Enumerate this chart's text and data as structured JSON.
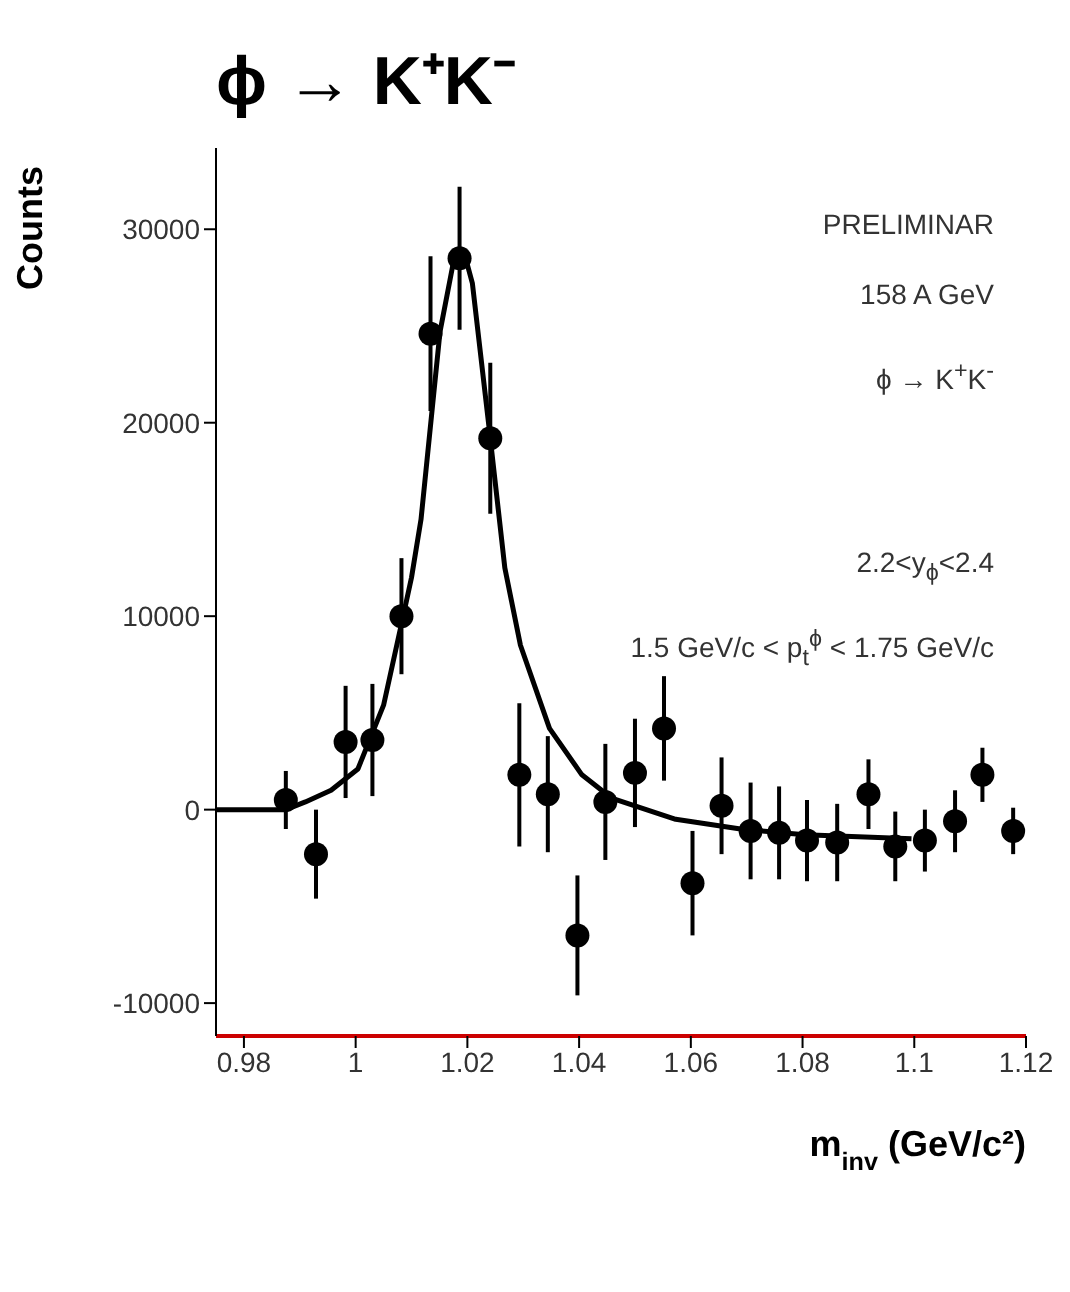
{
  "chart_data": {
    "type": "scatter",
    "title": "ϕ → K⁺K⁻",
    "xlabel": "m$_{inv}$  (GeV/c²)",
    "ylabel": "Counts",
    "annotations": [
      "PRELIMINAR",
      "158 A GeV",
      "ϕ → K$^{+}$K$^{-}$",
      "2.2<y$_{ϕ}$<2.4",
      "1.5 GeV/c < p$_{t}$$^{ϕ}$ < 1.75 GeV/c"
    ],
    "xlim": [
      0.975,
      1.12
    ],
    "xticks": [
      0.98,
      1,
      1.02,
      1.04,
      1.06,
      1.08,
      1.1,
      1.12
    ],
    "ylim": [
      -11700,
      34200
    ],
    "yticks": [
      -10000,
      0,
      10000,
      20000,
      30000
    ],
    "grid": false,
    "marker": "circle",
    "series": [
      {
        "color": "#000000",
        "x": [
          0.9875,
          0.9929,
          0.9982,
          1.003,
          1.0082,
          1.0134,
          1.0186,
          1.0241,
          1.0293,
          1.0344,
          1.0397,
          1.0447,
          1.05,
          1.0552,
          1.0603,
          1.0655,
          1.0707,
          1.0758,
          1.0808,
          1.0862,
          1.0918,
          1.0966,
          1.1019,
          1.1073,
          1.1122,
          1.1177
        ],
        "values": [
          500,
          -2300,
          3500,
          3600,
          10000,
          24600,
          28500,
          19200,
          1800,
          800,
          -6500,
          400,
          1900,
          4200,
          -3800,
          200,
          -1100,
          -1200,
          -1600,
          -1700,
          800,
          -1900,
          -1600,
          -600,
          1800,
          -1100
        ],
        "errors": [
          1500,
          2300,
          2900,
          2900,
          3000,
          4000,
          3700,
          3900,
          3700,
          3000,
          3100,
          3000,
          2800,
          2700,
          2700,
          2500,
          2500,
          2400,
          2100,
          2000,
          1800,
          1800,
          1600,
          1600,
          1400,
          1200
        ]
      },
      {
        "type": "line",
        "color": "#000000",
        "marker": "none",
        "line_style": "solid",
        "x": [
          0.975,
          0.9875,
          0.991,
          0.9956,
          1.0004,
          1.005,
          1.0085,
          1.01,
          1.0117,
          1.0151,
          1.0175,
          1.0195,
          1.0209,
          1.0241,
          1.0267,
          1.0295,
          1.0347,
          1.0405,
          1.0458,
          1.0573,
          1.0689,
          1.0804,
          1.0995
        ],
        "values": [
          0,
          0,
          400,
          1000,
          2100,
          5400,
          10000,
          12000,
          15000,
          24700,
          28300,
          28700,
          27200,
          19200,
          12500,
          8500,
          4200,
          1800,
          600,
          -500,
          -1000,
          -1300,
          -1500
        ]
      }
    ]
  }
}
